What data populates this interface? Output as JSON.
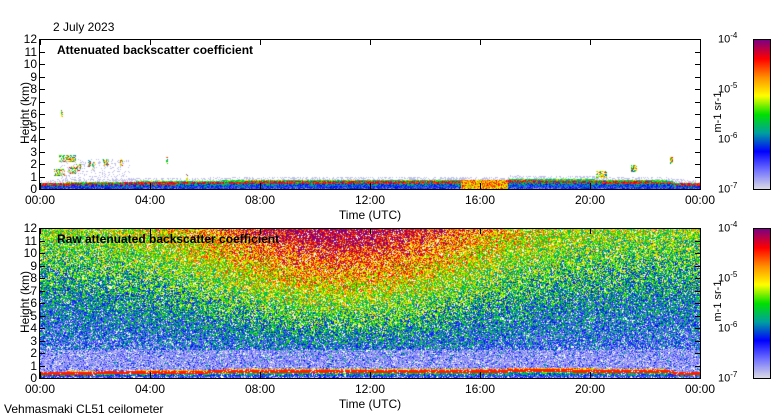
{
  "date": "2 July 2023",
  "footer": "Vehmasmaki CL51 ceilometer",
  "colors": {
    "low": "#d8d8e6",
    "blue": "#0000ff",
    "teal": "#00a0a0",
    "green": "#00e000",
    "yellow": "#ffff00",
    "orange": "#ff9000",
    "red": "#ff0000",
    "high": "#800080"
  },
  "chart_data": [
    {
      "type": "heatmap",
      "title": "Attenuated backscatter coefficient",
      "xlabel": "Time (UTC)",
      "ylabel": "Height (km)",
      "xticks": [
        "00:00",
        "04:00",
        "08:00",
        "12:00",
        "16:00",
        "20:00",
        "00:00"
      ],
      "yticks": [
        "0",
        "1",
        "2",
        "3",
        "4",
        "5",
        "6",
        "7",
        "8",
        "9",
        "10",
        "11",
        "12"
      ],
      "xlim_hours": [
        0,
        24
      ],
      "ylim_km": [
        0,
        12
      ],
      "colorbar": {
        "label": "m-1 sr-1",
        "ticks": [
          "10-7",
          "10-6",
          "10-5",
          "10-4"
        ],
        "range": [
          1e-07,
          0.0001
        ],
        "scale": "log"
      },
      "features": [
        {
          "desc": "boundary layer signal",
          "height_km": [
            0,
            0.8
          ],
          "time_h": [
            0,
            24
          ]
        },
        {
          "desc": "scattered clouds",
          "height_km": [
            1,
            2.7
          ],
          "time_h": [
            0.5,
            3
          ]
        },
        {
          "desc": "isolated cloud",
          "height_km": 6.1,
          "time_h": 0.75
        }
      ]
    },
    {
      "type": "heatmap",
      "title": "Raw attenuated backscatter coefficient",
      "xlabel": "Time (UTC)",
      "ylabel": "Height (km)",
      "xticks": [
        "00:00",
        "04:00",
        "08:00",
        "12:00",
        "16:00",
        "20:00",
        "00:00"
      ],
      "yticks": [
        "0",
        "1",
        "2",
        "3",
        "4",
        "5",
        "6",
        "7",
        "8",
        "9",
        "10",
        "11",
        "12"
      ],
      "xlim_hours": [
        0,
        24
      ],
      "ylim_km": [
        0,
        12
      ],
      "colorbar": {
        "label": "m-1 sr-1",
        "ticks": [
          "10-7",
          "10-6",
          "10-5",
          "10-4"
        ],
        "range": [
          1e-07,
          0.0001
        ],
        "scale": "log"
      }
    }
  ]
}
